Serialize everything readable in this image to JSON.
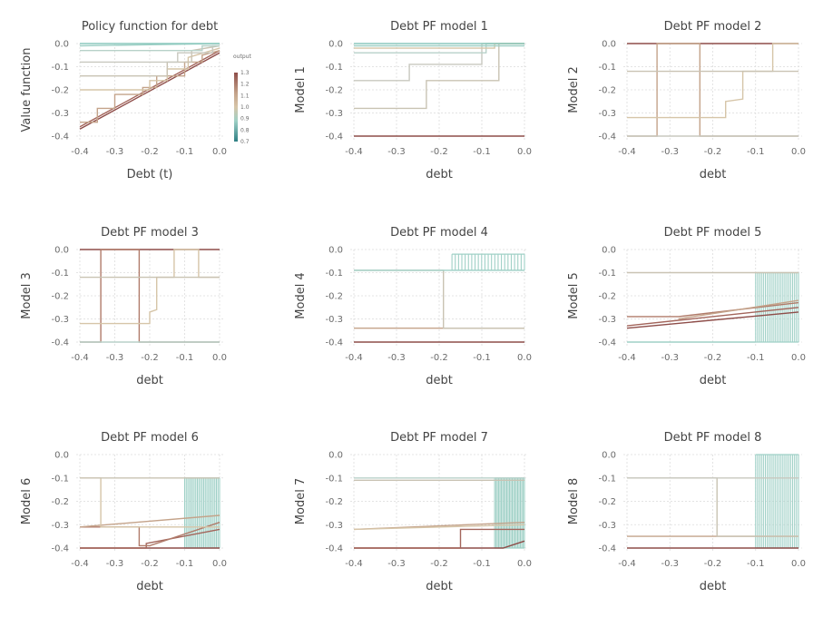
{
  "chart_data": [
    {
      "type": "line",
      "title": "Policy function for debt",
      "xlabel": "Debt (t)",
      "ylabel": "Value function",
      "xlim": [
        -0.4,
        0.0
      ],
      "ylim": [
        -0.4,
        0.0
      ],
      "xticks": [
        "-0.4",
        "-0.3",
        "-0.2",
        "-0.1",
        "0.0"
      ],
      "yticks": [
        "0.0",
        "-0.1",
        "-0.2",
        "-0.3",
        "-0.4"
      ],
      "grid": true,
      "colorbar": {
        "label": "output",
        "ticks": [
          "1.3",
          "1.2",
          "1.1",
          "1.0",
          "0.9",
          "0.8",
          "0.7"
        ],
        "range": [
          0.7,
          1.3
        ]
      },
      "series": [
        {
          "color": "#8e4d49",
          "x": [
            -0.4,
            0.0
          ],
          "y": [
            -0.37,
            -0.04
          ]
        },
        {
          "color": "#a3655b",
          "x": [
            -0.4,
            0.0
          ],
          "y": [
            -0.36,
            -0.03
          ]
        },
        {
          "color": "#c4a38a",
          "x": [
            -0.4,
            -0.35,
            -0.35,
            -0.3,
            -0.3,
            -0.22,
            -0.22,
            -0.18,
            -0.18,
            -0.1,
            -0.1,
            -0.05,
            -0.05,
            0.0
          ],
          "y": [
            -0.34,
            -0.34,
            -0.28,
            -0.28,
            -0.22,
            -0.22,
            -0.19,
            -0.19,
            -0.14,
            -0.14,
            -0.08,
            -0.08,
            -0.05,
            -0.03
          ]
        },
        {
          "color": "#d6c5a8",
          "x": [
            -0.4,
            -0.32,
            -0.32,
            -0.26,
            -0.26,
            -0.2,
            -0.2,
            -0.15,
            -0.15,
            -0.09,
            -0.09,
            0.0
          ],
          "y": [
            -0.2,
            -0.2,
            -0.2,
            -0.2,
            -0.2,
            -0.2,
            -0.16,
            -0.16,
            -0.11,
            -0.11,
            -0.06,
            -0.02
          ]
        },
        {
          "color": "#c9c3b3",
          "x": [
            -0.4,
            -0.15,
            -0.15,
            -0.08,
            -0.08,
            0.0
          ],
          "y": [
            -0.14,
            -0.14,
            -0.08,
            -0.08,
            -0.03,
            -0.01
          ]
        },
        {
          "color": "#c8c8bf",
          "x": [
            -0.4,
            -0.12,
            -0.12,
            -0.02,
            -0.02,
            0.0
          ],
          "y": [
            -0.08,
            -0.08,
            -0.04,
            -0.04,
            -0.01,
            -0.01
          ]
        },
        {
          "color": "#b8d1c9",
          "x": [
            -0.4,
            -0.05,
            -0.05,
            0.0
          ],
          "y": [
            -0.03,
            -0.03,
            -0.01,
            -0.01
          ]
        },
        {
          "color": "#9fd0c6",
          "x": [
            -0.4,
            0.0
          ],
          "y": [
            -0.01,
            0.0
          ]
        },
        {
          "color": "#8cc9bd",
          "x": [
            -0.4,
            0.0
          ],
          "y": [
            0.0,
            0.0
          ]
        }
      ]
    },
    {
      "type": "line",
      "title": "Debt PF model 1",
      "xlabel": "debt",
      "ylabel": "Model 1",
      "xlim": [
        -0.4,
        0.0
      ],
      "ylim": [
        -0.4,
        0.0
      ],
      "xticks": [
        "-0.4",
        "-0.3",
        "-0.2",
        "-0.1",
        "0.0"
      ],
      "yticks": [
        "0.0",
        "-0.1",
        "-0.2",
        "-0.3",
        "-0.4"
      ],
      "grid": true,
      "series": [
        {
          "color": "#8e4d49",
          "x": [
            -0.4,
            0.0
          ],
          "y": [
            -0.4,
            -0.4
          ]
        },
        {
          "color": "#c9c3b3",
          "x": [
            -0.4,
            -0.23,
            -0.23,
            -0.06,
            -0.06,
            0.0
          ],
          "y": [
            -0.28,
            -0.28,
            -0.16,
            -0.16,
            0.0,
            0.0
          ]
        },
        {
          "color": "#c8c8bf",
          "x": [
            -0.4,
            -0.27,
            -0.27,
            -0.1,
            -0.1,
            0.0
          ],
          "y": [
            -0.16,
            -0.16,
            -0.09,
            -0.09,
            0.0,
            0.0
          ]
        },
        {
          "color": "#b8d1c9",
          "x": [
            -0.4,
            -0.09,
            -0.09,
            0.0
          ],
          "y": [
            -0.04,
            -0.04,
            0.0,
            0.0
          ]
        },
        {
          "color": "#d6c5a8",
          "x": [
            -0.4,
            -0.07,
            -0.07,
            0.0
          ],
          "y": [
            -0.02,
            -0.02,
            0.0,
            0.0
          ]
        },
        {
          "color": "#9fd0c6",
          "x": [
            -0.4,
            0.0
          ],
          "y": [
            -0.01,
            -0.01
          ]
        },
        {
          "color": "#8cc9bd",
          "x": [
            -0.4,
            0.0
          ],
          "y": [
            0.0,
            0.0
          ]
        }
      ]
    },
    {
      "type": "line",
      "title": "Debt PF model 2",
      "xlabel": "debt",
      "ylabel": "Model 2",
      "xlim": [
        -0.4,
        0.0
      ],
      "ylim": [
        -0.4,
        0.0
      ],
      "xticks": [
        "-0.4",
        "-0.3",
        "-0.2",
        "-0.1",
        "0.0"
      ],
      "yticks": [
        "0.0",
        "-0.1",
        "-0.2",
        "-0.3",
        "-0.4"
      ],
      "grid": true,
      "series": [
        {
          "color": "#8e4d49",
          "x": [
            -0.4,
            0.0
          ],
          "y": [
            0.0,
            0.0
          ]
        },
        {
          "color": "#c4a38a",
          "x": [
            -0.4,
            -0.33,
            -0.33,
            -0.23,
            -0.23,
            0.0
          ],
          "y": [
            -0.4,
            -0.4,
            0.0,
            0.0,
            -0.4,
            -0.4
          ]
        },
        {
          "color": "#d6c5a8",
          "x": [
            -0.4,
            -0.17,
            -0.17,
            -0.13,
            -0.13,
            -0.06,
            -0.06,
            0.0
          ],
          "y": [
            -0.32,
            -0.32,
            -0.25,
            -0.24,
            -0.12,
            -0.12,
            0.0,
            0.0
          ]
        },
        {
          "color": "#c9c3b3",
          "x": [
            -0.4,
            0.0
          ],
          "y": [
            -0.12,
            -0.12
          ]
        },
        {
          "color": "#c8c8bf",
          "x": [
            -0.4,
            0.0
          ],
          "y": [
            -0.4,
            -0.4
          ]
        }
      ]
    },
    {
      "type": "line",
      "title": "Debt PF model 3",
      "xlabel": "debt",
      "ylabel": "Model 3",
      "xlim": [
        -0.4,
        0.0
      ],
      "ylim": [
        -0.4,
        0.0
      ],
      "xticks": [
        "-0.4",
        "-0.3",
        "-0.2",
        "-0.1",
        "0.0"
      ],
      "yticks": [
        "0.0",
        "-0.1",
        "-0.2",
        "-0.3",
        "-0.4"
      ],
      "grid": true,
      "series": [
        {
          "color": "#8e4d49",
          "x": [
            -0.4,
            0.0
          ],
          "y": [
            0.0,
            0.0
          ]
        },
        {
          "color": "#b07b6a",
          "x": [
            -0.4,
            -0.34,
            -0.34,
            -0.23,
            -0.23,
            0.0
          ],
          "y": [
            -0.4,
            -0.4,
            0.0,
            0.0,
            -0.4,
            -0.4
          ]
        },
        {
          "color": "#d6c5a8",
          "x": [
            -0.4,
            -0.2,
            -0.2,
            -0.18,
            -0.18,
            -0.13,
            -0.13,
            -0.06,
            -0.06,
            0.0
          ],
          "y": [
            -0.32,
            -0.32,
            -0.27,
            -0.26,
            -0.12,
            -0.12,
            0.0,
            0.0,
            -0.12,
            -0.12
          ]
        },
        {
          "color": "#c9c3b3",
          "x": [
            -0.4,
            0.0
          ],
          "y": [
            -0.12,
            -0.12
          ]
        },
        {
          "color": "#b8d1c9",
          "x": [
            -0.4,
            0.0
          ],
          "y": [
            -0.4,
            -0.4
          ]
        }
      ]
    },
    {
      "type": "line",
      "title": "Debt PF model 4",
      "xlabel": "debt",
      "ylabel": "Model 4",
      "xlim": [
        -0.4,
        0.0
      ],
      "ylim": [
        -0.4,
        0.0
      ],
      "xticks": [
        "-0.4",
        "-0.3",
        "-0.2",
        "-0.1",
        "0.0"
      ],
      "yticks": [
        "0.0",
        "-0.1",
        "-0.2",
        "-0.3",
        "-0.4"
      ],
      "grid": true,
      "series": [
        {
          "color": "#8e4d49",
          "x": [
            -0.4,
            0.0
          ],
          "y": [
            -0.4,
            -0.4
          ]
        },
        {
          "color": "#c4a38a",
          "x": [
            -0.4,
            0.0
          ],
          "y": [
            -0.34,
            -0.34
          ]
        },
        {
          "color": "#c9c3b3",
          "x": [
            -0.4,
            -0.19,
            -0.19,
            0.0
          ],
          "y": [
            -0.09,
            -0.09,
            -0.34,
            -0.34
          ]
        },
        {
          "color": "#9fd0c6",
          "x": [
            -0.4,
            -0.17,
            0.0
          ],
          "y": [
            -0.09,
            -0.09,
            -0.09
          ]
        }
      ],
      "oscillation": {
        "color": "#9fd0c6",
        "x_from": -0.17,
        "x_to": 0.0,
        "y_low": -0.09,
        "y_high": -0.02
      }
    },
    {
      "type": "line",
      "title": "Debt PF model 5",
      "xlabel": "debt",
      "ylabel": "Model 5",
      "xlim": [
        -0.4,
        0.0
      ],
      "ylim": [
        -0.4,
        0.0
      ],
      "xticks": [
        "-0.4",
        "-0.3",
        "-0.2",
        "-0.1",
        "0.0"
      ],
      "yticks": [
        "0.0",
        "-0.1",
        "-0.2",
        "-0.3",
        "-0.4"
      ],
      "grid": true,
      "series": [
        {
          "color": "#8e4d49",
          "x": [
            -0.4,
            0.0
          ],
          "y": [
            -0.34,
            -0.27
          ]
        },
        {
          "color": "#a3655b",
          "x": [
            -0.4,
            0.0
          ],
          "y": [
            -0.33,
            -0.25
          ]
        },
        {
          "color": "#b07b6a",
          "x": [
            -0.4,
            -0.28,
            0.0
          ],
          "y": [
            -0.29,
            -0.29,
            -0.23
          ]
        },
        {
          "color": "#c4a38a",
          "x": [
            -0.28,
            0.0
          ],
          "y": [
            -0.3,
            -0.22
          ]
        },
        {
          "color": "#c9c3b3",
          "x": [
            -0.4,
            0.0
          ],
          "y": [
            -0.1,
            -0.1
          ]
        },
        {
          "color": "#9fd0c6",
          "x": [
            -0.4,
            -0.1
          ],
          "y": [
            -0.4,
            -0.4
          ]
        }
      ],
      "oscillation": {
        "color": "#9fd0c6",
        "x_from": -0.1,
        "x_to": 0.0,
        "y_low": -0.4,
        "y_high": -0.1
      }
    },
    {
      "type": "line",
      "title": "Debt PF model 6",
      "xlabel": "debt",
      "ylabel": "Model 6",
      "xlim": [
        -0.4,
        0.0
      ],
      "ylim": [
        -0.4,
        0.0
      ],
      "xticks": [
        "-0.4",
        "-0.3",
        "-0.2",
        "-0.1",
        "0.0"
      ],
      "yticks": [
        "0.0",
        "-0.1",
        "-0.2",
        "-0.3",
        "-0.4"
      ],
      "grid": true,
      "series": [
        {
          "color": "#8e4d49",
          "x": [
            -0.4,
            0.0
          ],
          "y": [
            -0.4,
            -0.4
          ]
        },
        {
          "color": "#a3655b",
          "x": [
            -0.4,
            -0.21,
            -0.21,
            0.0
          ],
          "y": [
            -0.4,
            -0.4,
            -0.38,
            -0.32
          ]
        },
        {
          "color": "#b07b6a",
          "x": [
            -0.4,
            -0.23,
            -0.23,
            -0.2,
            0.0
          ],
          "y": [
            -0.31,
            -0.31,
            -0.39,
            -0.39,
            -0.29
          ]
        },
        {
          "color": "#c4a38a",
          "x": [
            -0.4,
            0.0
          ],
          "y": [
            -0.31,
            -0.26
          ]
        },
        {
          "color": "#d6c5a8",
          "x": [
            -0.4,
            -0.34,
            -0.34,
            0.0
          ],
          "y": [
            -0.1,
            -0.1,
            -0.31,
            -0.31
          ]
        },
        {
          "color": "#c9c3b3",
          "x": [
            -0.4,
            0.0
          ],
          "y": [
            -0.1,
            -0.1
          ]
        }
      ],
      "oscillation": {
        "color": "#9fd0c6",
        "x_from": -0.1,
        "x_to": 0.0,
        "y_low": -0.4,
        "y_high": -0.1
      }
    },
    {
      "type": "line",
      "title": "Debt PF model 7",
      "xlabel": "debt",
      "ylabel": "Model 7",
      "xlim": [
        -0.4,
        0.0
      ],
      "ylim": [
        -0.4,
        0.0
      ],
      "xticks": [
        "-0.4",
        "-0.3",
        "-0.2",
        "-0.1",
        "0.0"
      ],
      "yticks": [
        "0.0",
        "-0.1",
        "-0.2",
        "-0.3",
        "-0.4"
      ],
      "grid": true,
      "series": [
        {
          "color": "#8e4d49",
          "x": [
            -0.4,
            -0.05,
            0.0
          ],
          "y": [
            -0.4,
            -0.4,
            -0.37
          ]
        },
        {
          "color": "#a3655b",
          "x": [
            -0.4,
            -0.15,
            -0.15,
            0.0
          ],
          "y": [
            -0.4,
            -0.4,
            -0.32,
            -0.32
          ]
        },
        {
          "color": "#c4a38a",
          "x": [
            -0.4,
            0.0
          ],
          "y": [
            -0.32,
            -0.29
          ]
        },
        {
          "color": "#d6c5a8",
          "x": [
            -0.4,
            0.0
          ],
          "y": [
            -0.32,
            -0.3
          ]
        },
        {
          "color": "#c9c3b3",
          "x": [
            -0.4,
            0.0
          ],
          "y": [
            -0.11,
            -0.11
          ]
        },
        {
          "color": "#b8d1c9",
          "x": [
            -0.4,
            0.0
          ],
          "y": [
            -0.1,
            -0.1
          ]
        }
      ],
      "oscillation": {
        "color": "#9fd0c6",
        "x_from": -0.07,
        "x_to": 0.0,
        "y_low": -0.4,
        "y_high": -0.1
      }
    },
    {
      "type": "line",
      "title": "Debt PF model 8",
      "xlabel": "debt",
      "ylabel": "Model 8",
      "xlim": [
        -0.4,
        0.0
      ],
      "ylim": [
        -0.4,
        0.0
      ],
      "xticks": [
        "-0.4",
        "-0.3",
        "-0.2",
        "-0.1",
        "0.0"
      ],
      "yticks": [
        "0.0",
        "-0.1",
        "-0.2",
        "-0.3",
        "-0.4"
      ],
      "grid": true,
      "series": [
        {
          "color": "#8e4d49",
          "x": [
            -0.4,
            0.0
          ],
          "y": [
            -0.4,
            -0.4
          ]
        },
        {
          "color": "#c4a38a",
          "x": [
            -0.4,
            0.0
          ],
          "y": [
            -0.35,
            -0.35
          ]
        },
        {
          "color": "#c9c3b3",
          "x": [
            -0.4,
            -0.19,
            -0.19,
            0.0
          ],
          "y": [
            -0.1,
            -0.1,
            -0.35,
            -0.35
          ]
        },
        {
          "color": "#c8c8bf",
          "x": [
            -0.4,
            0.0
          ],
          "y": [
            -0.1,
            -0.1
          ]
        }
      ],
      "oscillation": {
        "color": "#9fd0c6",
        "x_from": -0.1,
        "x_to": 0.0,
        "y_low": -0.4,
        "y_high": 0.0
      }
    }
  ]
}
